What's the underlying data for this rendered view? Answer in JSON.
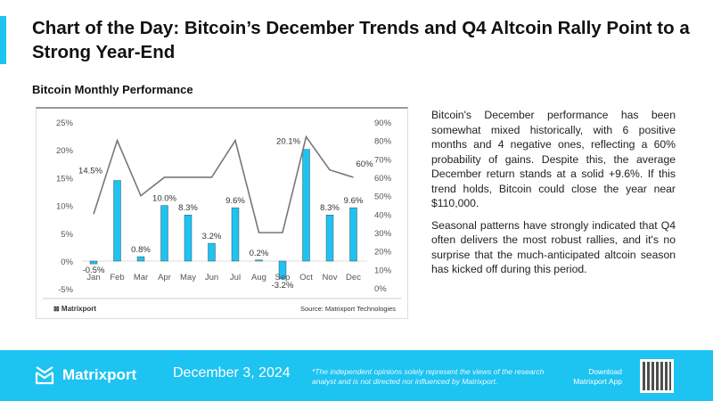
{
  "header": {
    "title": "Chart of the Day: Bitcoin’s December Trends and Q4 Altcoin Rally Point to a Strong Year-End",
    "subtitle": "Bitcoin Monthly Performance"
  },
  "chart_data": {
    "type": "bar+line",
    "categories": [
      "Jan",
      "Feb",
      "Mar",
      "Apr",
      "May",
      "Jun",
      "Jul",
      "Aug",
      "Sep",
      "Oct",
      "Nov",
      "Dec"
    ],
    "series": [
      {
        "type": "bar",
        "axis": "left",
        "values": [
          -0.5,
          14.5,
          0.8,
          10.0,
          8.3,
          3.2,
          9.6,
          0.2,
          -3.2,
          20.1,
          8.3,
          9.6
        ],
        "labels": [
          "-0.5%",
          "14.5%",
          "0.8%",
          "10.0%",
          "8.3%",
          "3.2%",
          "9.6%",
          "0.2%",
          "-3.2%",
          "20.1%",
          "8.3%",
          "9.6%"
        ],
        "color": "#1ec3f2"
      },
      {
        "type": "line",
        "axis": "right",
        "values": [
          40,
          80,
          50,
          60,
          60,
          60,
          80,
          30,
          30,
          82,
          64,
          60
        ],
        "end_label": "60%",
        "color": "#777777"
      }
    ],
    "left_axis": {
      "ylim": [
        -5,
        25
      ],
      "ticks": [
        "-5%",
        "0%",
        "5%",
        "10%",
        "15%",
        "20%",
        "25%"
      ]
    },
    "right_axis": {
      "ylim": [
        0,
        90
      ],
      "ticks": [
        "0%",
        "10%",
        "20%",
        "30%",
        "40%",
        "50%",
        "60%",
        "70%",
        "80%",
        "90%"
      ]
    },
    "grid": false
  },
  "chart_footer": {
    "logo": "Matrixport",
    "source": "Source: Matrixport Technologies"
  },
  "body": [
    "Bitcoin's December performance has been somewhat mixed historically, with 6 positive months and 4 negative ones, reflecting a 60% probability of gains. Despite this, the average December return stands at a solid +9.6%. If this trend holds, Bitcoin could close the year near $110,000.",
    "Seasonal patterns have strongly indicated that Q4 often delivers the most robust rallies, and it's no surprise that the much-anticipated altcoin season has kicked off during this period."
  ],
  "footer": {
    "brand": "Matrixport",
    "date": "December 3, 2024",
    "disclaimer": "*The independent opinions solely represent the views of the research analyst and is not directed nor influenced by Matrixport.",
    "download": "Download Matrixport App"
  }
}
